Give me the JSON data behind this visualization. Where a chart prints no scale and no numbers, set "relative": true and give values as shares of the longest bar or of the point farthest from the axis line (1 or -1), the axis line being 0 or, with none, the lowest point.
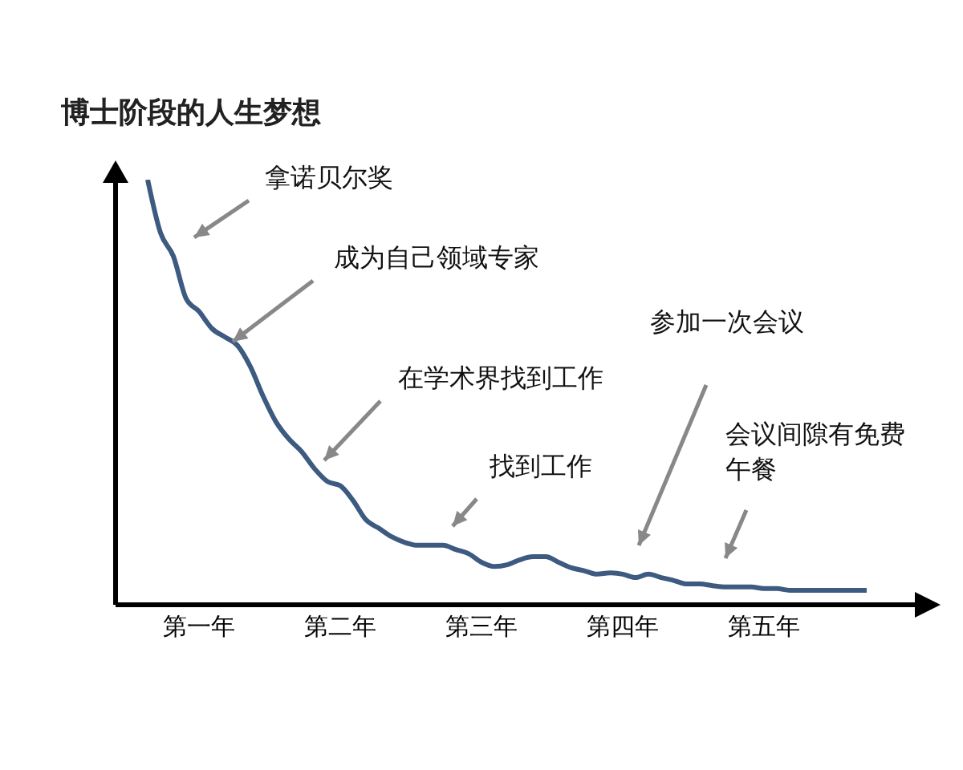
{
  "chart_data": {
    "type": "line",
    "title": "博士阶段的人生梦想",
    "relative": true,
    "marker": "none",
    "line_style": "solid",
    "grid": false,
    "legend": false,
    "categories": [
      null,
      null,
      null,
      null,
      "第一年",
      null,
      null,
      null,
      null,
      null,
      null,
      null,
      null,
      null,
      null,
      "第二年",
      null,
      null,
      null,
      null,
      null,
      null,
      null,
      null,
      null,
      null,
      "第三年",
      null,
      null,
      null,
      null,
      null,
      null,
      null,
      null,
      null,
      null,
      "第四年",
      null,
      null,
      null,
      null,
      null,
      null,
      null,
      null,
      null,
      null,
      "第五年",
      null,
      null,
      null,
      null,
      null,
      null,
      null,
      null
    ],
    "series": [
      {
        "color": "#3d5a80",
        "values": [
          1,
          0.875,
          0.82,
          0.72,
          0.69,
          0.65,
          0.63,
          0.61,
          0.56,
          0.49,
          0.43,
          0.39,
          0.36,
          0.32,
          0.29,
          0.28,
          0.245,
          0.2,
          0.18,
          0.16,
          0.147,
          0.14,
          0.14,
          0.14,
          0.13,
          0.12,
          0.1,
          0.09,
          0.094,
          0.106,
          0.113,
          0.113,
          0.1,
          0.087,
          0.08,
          0.072,
          0.075,
          0.072,
          0.064,
          0.072,
          0.064,
          0.057,
          0.049,
          0.049,
          0.045,
          0.042,
          0.042,
          0.042,
          0.038,
          0.038,
          0.034,
          0.034,
          0.034,
          0.034,
          0.034,
          0.034,
          0.034
        ]
      }
    ],
    "annotations": [
      "拿诺贝尔奖",
      "成为自己领域专家",
      "在学术界找到工作",
      "找到工作",
      "参加一次会议",
      "会议间隙有免费午餐"
    ]
  }
}
